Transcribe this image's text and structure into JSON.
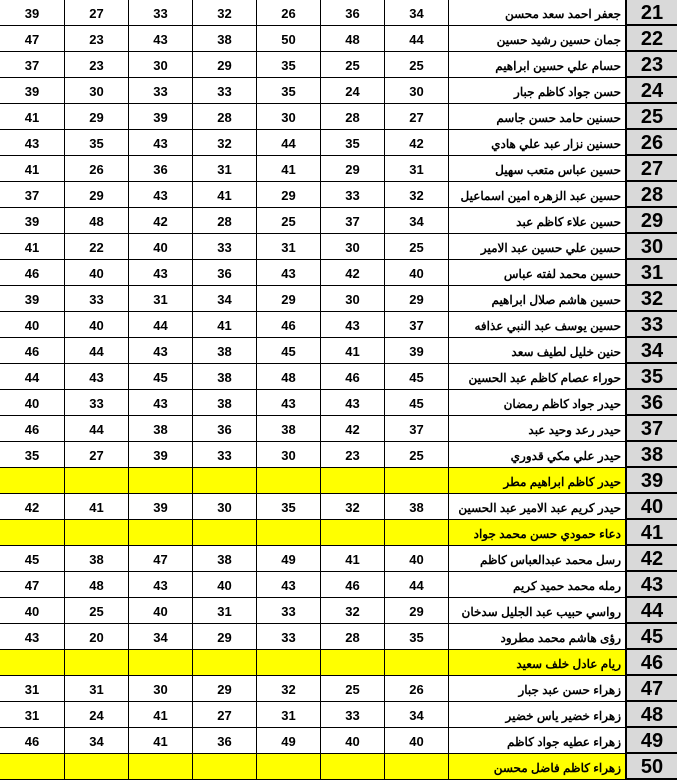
{
  "colors": {
    "highlight": "#ffff00",
    "index_bg": "#d9d9d9"
  },
  "rows": [
    {
      "no": "21",
      "name": "جعفر احمد سعد محسن",
      "scores": [
        "39",
        "27",
        "33",
        "32",
        "26",
        "36",
        "34"
      ],
      "highlight": false
    },
    {
      "no": "22",
      "name": "جمان حسين رشيد حسين",
      "scores": [
        "47",
        "23",
        "43",
        "38",
        "50",
        "48",
        "44"
      ],
      "highlight": false
    },
    {
      "no": "23",
      "name": "حسام علي حسين ابراهيم",
      "scores": [
        "37",
        "23",
        "30",
        "29",
        "35",
        "25",
        "25"
      ],
      "highlight": false
    },
    {
      "no": "24",
      "name": "حسن جواد كاظم جبار",
      "scores": [
        "39",
        "30",
        "33",
        "33",
        "35",
        "24",
        "30"
      ],
      "highlight": false
    },
    {
      "no": "25",
      "name": "حسنين حامد حسن جاسم",
      "scores": [
        "41",
        "29",
        "39",
        "28",
        "30",
        "28",
        "27"
      ],
      "highlight": false
    },
    {
      "no": "26",
      "name": "حسنين نزار عبد علي هادي",
      "scores": [
        "43",
        "35",
        "43",
        "32",
        "44",
        "35",
        "42"
      ],
      "highlight": false
    },
    {
      "no": "27",
      "name": "حسين عباس متعب سهيل",
      "scores": [
        "41",
        "26",
        "36",
        "31",
        "41",
        "29",
        "31"
      ],
      "highlight": false
    },
    {
      "no": "28",
      "name": "حسين عبد الزهره امين اسماعيل",
      "scores": [
        "37",
        "29",
        "43",
        "41",
        "29",
        "33",
        "32"
      ],
      "highlight": false
    },
    {
      "no": "29",
      "name": "حسين علاء كاظم عبد",
      "scores": [
        "39",
        "48",
        "42",
        "28",
        "25",
        "37",
        "34"
      ],
      "highlight": false
    },
    {
      "no": "30",
      "name": "حسين علي حسين عبد الامير",
      "scores": [
        "41",
        "22",
        "40",
        "33",
        "31",
        "30",
        "25"
      ],
      "highlight": false
    },
    {
      "no": "31",
      "name": "حسين محمد لفته عباس",
      "scores": [
        "46",
        "40",
        "43",
        "36",
        "43",
        "42",
        "40"
      ],
      "highlight": false
    },
    {
      "no": "32",
      "name": "حسين هاشم صلال ابراهيم",
      "scores": [
        "39",
        "33",
        "31",
        "34",
        "29",
        "30",
        "29"
      ],
      "highlight": false
    },
    {
      "no": "33",
      "name": "حسين يوسف عبد النبي عذافه",
      "scores": [
        "40",
        "40",
        "44",
        "41",
        "46",
        "43",
        "37"
      ],
      "highlight": false
    },
    {
      "no": "34",
      "name": "حنين خليل لطيف سعد",
      "scores": [
        "46",
        "44",
        "43",
        "38",
        "45",
        "41",
        "39"
      ],
      "highlight": false
    },
    {
      "no": "35",
      "name": "حوراء عصام كاظم عبد الحسين",
      "scores": [
        "44",
        "43",
        "45",
        "38",
        "48",
        "46",
        "45"
      ],
      "highlight": false
    },
    {
      "no": "36",
      "name": "حيدر جواد كاظم رمضان",
      "scores": [
        "40",
        "33",
        "43",
        "38",
        "43",
        "43",
        "45"
      ],
      "highlight": false
    },
    {
      "no": "37",
      "name": "حيدر رعد وحيد عبد",
      "scores": [
        "46",
        "44",
        "38",
        "36",
        "38",
        "42",
        "37"
      ],
      "highlight": false
    },
    {
      "no": "38",
      "name": "حيدر علي مكي قدوري",
      "scores": [
        "35",
        "27",
        "39",
        "33",
        "30",
        "23",
        "25"
      ],
      "highlight": false
    },
    {
      "no": "39",
      "name": "حيدر كاظم ابراهيم مطر",
      "scores": [
        "",
        "",
        "",
        "",
        "",
        "",
        ""
      ],
      "highlight": true
    },
    {
      "no": "40",
      "name": "حيدر كريم عبد الامير عبد الحسين",
      "scores": [
        "42",
        "41",
        "39",
        "30",
        "35",
        "32",
        "38"
      ],
      "highlight": false
    },
    {
      "no": "41",
      "name": "دعاء حمودي حسن محمد جواد",
      "scores": [
        "",
        "",
        "",
        "",
        "",
        "",
        ""
      ],
      "highlight": true
    },
    {
      "no": "42",
      "name": "رسل محمد عبدالعباس كاظم",
      "scores": [
        "45",
        "38",
        "47",
        "38",
        "49",
        "41",
        "40"
      ],
      "highlight": false
    },
    {
      "no": "43",
      "name": "رمله محمد حميد كريم",
      "scores": [
        "47",
        "48",
        "43",
        "40",
        "43",
        "46",
        "44"
      ],
      "highlight": false
    },
    {
      "no": "44",
      "name": "رواسي حبيب عبد الجليل سدخان",
      "scores": [
        "40",
        "25",
        "40",
        "31",
        "33",
        "32",
        "29"
      ],
      "highlight": false
    },
    {
      "no": "45",
      "name": "رؤى هاشم محمد مطرود",
      "scores": [
        "43",
        "20",
        "34",
        "29",
        "33",
        "28",
        "35"
      ],
      "highlight": false
    },
    {
      "no": "46",
      "name": "ريام عادل خلف سعيد",
      "scores": [
        "",
        "",
        "",
        "",
        "",
        "",
        ""
      ],
      "highlight": true
    },
    {
      "no": "47",
      "name": "زهراء حسن عبد جبار",
      "scores": [
        "31",
        "31",
        "30",
        "29",
        "32",
        "25",
        "26"
      ],
      "highlight": false
    },
    {
      "no": "48",
      "name": "زهراء خضير ياس خضير",
      "scores": [
        "31",
        "24",
        "41",
        "27",
        "31",
        "33",
        "34"
      ],
      "highlight": false
    },
    {
      "no": "49",
      "name": "زهراء عطيه جواد كاظم",
      "scores": [
        "46",
        "34",
        "41",
        "36",
        "49",
        "40",
        "40"
      ],
      "highlight": false
    },
    {
      "no": "50",
      "name": "زهراء كاظم فاضل محسن",
      "scores": [
        "",
        "",
        "",
        "",
        "",
        "",
        ""
      ],
      "highlight": true
    }
  ]
}
